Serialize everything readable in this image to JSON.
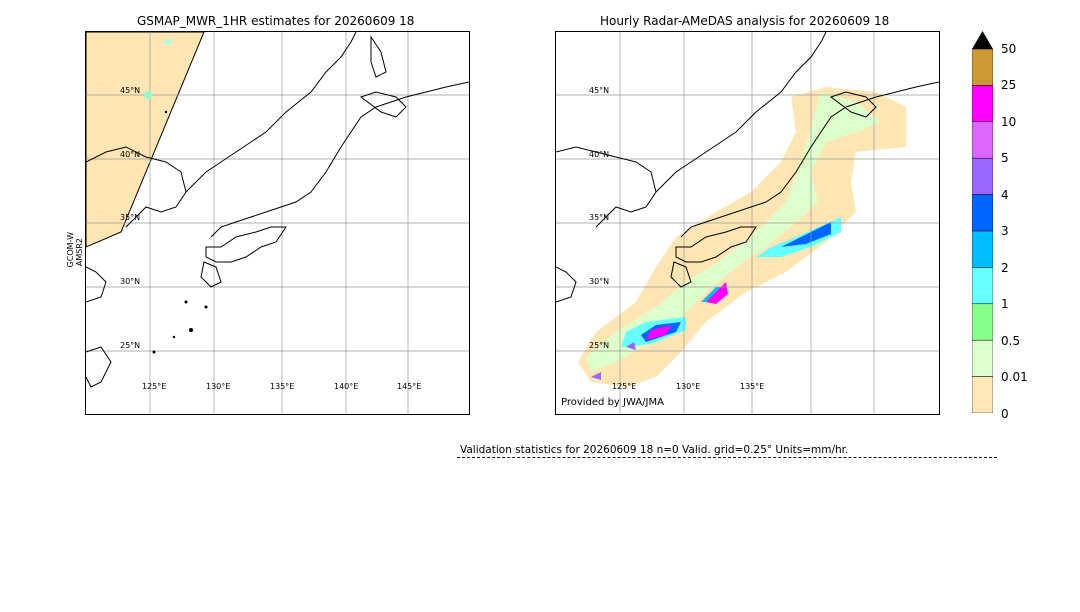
{
  "left_panel": {
    "title": "GSMAP_MWR_1HR estimates for 20260609 18",
    "sensor_label_line1": "GCOM-W",
    "sensor_label_line2": "AMSR2",
    "lat_labels": [
      "45°N",
      "40°N",
      "35°N",
      "30°N",
      "25°N"
    ],
    "lon_labels": [
      "125°E",
      "130°E",
      "135°E",
      "140°E",
      "145°E"
    ],
    "swath_fill_color": "#fde6b3"
  },
  "right_panel": {
    "title": "Hourly Radar-AMeDAS analysis for 20260609 18",
    "lat_labels": [
      "45°N",
      "40°N",
      "35°N",
      "30°N",
      "25°N"
    ],
    "lon_labels": [
      "125°E",
      "130°E",
      "135°E"
    ],
    "credit": "Provided by JWA/JMA"
  },
  "colorbar": {
    "units": "mm/hr",
    "labels": [
      "50",
      "25",
      "10",
      "5",
      "4",
      "3",
      "2",
      "1",
      "0.5",
      "0.01",
      "0"
    ],
    "colors": [
      "#cc9933",
      "#ff00ff",
      "#dd66ff",
      "#9966ff",
      "#0066ff",
      "#00bbff",
      "#66ffff",
      "#88ff88",
      "#ddffcc",
      "#ffe8b8"
    ],
    "extend_color": "#000000"
  },
  "stats": {
    "text": "Validation statistics for 20260609 18  n=0 Valid. grid=0.25° Units=mm/hr."
  }
}
